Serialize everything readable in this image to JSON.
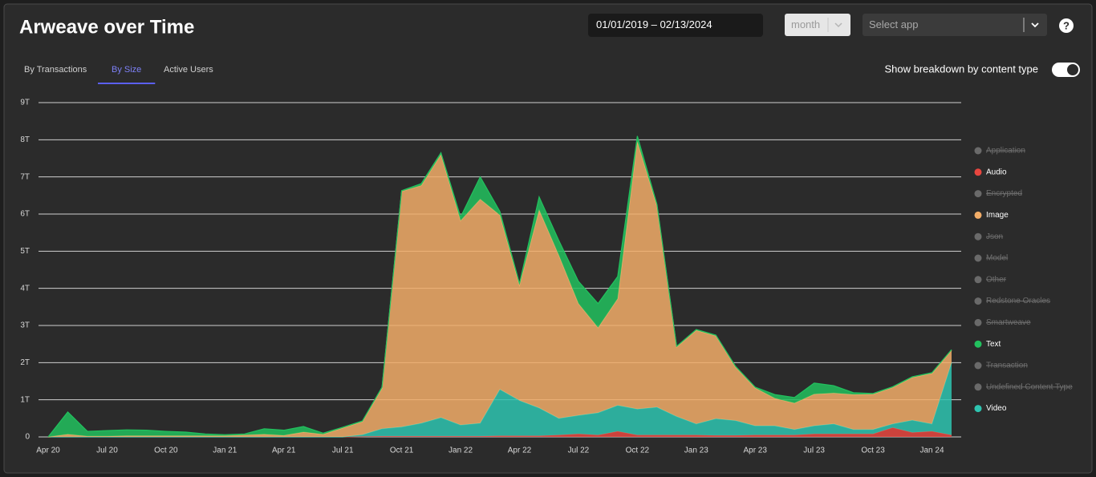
{
  "header": {
    "title": "Arweave over Time"
  },
  "controls": {
    "date_range": "01/01/2019 – 02/13/2024",
    "interval": "month",
    "app_placeholder": "Select app",
    "help": "?"
  },
  "tabs": {
    "items": [
      "By Transactions",
      "By Size",
      "Active Users"
    ],
    "active": 1
  },
  "toggle": {
    "label": "Show breakdown by content type",
    "on": true
  },
  "chart_data": {
    "type": "stacked_area",
    "categories": [
      "Apr 20",
      null,
      null,
      "Jul 20",
      null,
      null,
      "Oct 20",
      null,
      null,
      "Jan 21",
      null,
      null,
      "Apr 21",
      null,
      null,
      "Jul 21",
      null,
      null,
      "Oct 21",
      null,
      null,
      "Jan 22",
      null,
      null,
      "Apr 22",
      null,
      null,
      "Jul 22",
      null,
      null,
      "Oct 22",
      null,
      null,
      "Jan 23",
      null,
      null,
      "Apr 23",
      null,
      null,
      "Jul 23",
      null,
      null,
      "Oct 23",
      null,
      null,
      "Jan 24",
      null
    ],
    "series": [
      {
        "name": "Audio",
        "color": "#e8463f",
        "values": [
          0,
          0,
          0,
          0,
          0,
          0,
          0,
          0,
          0,
          0,
          0,
          0,
          0,
          0,
          0,
          0,
          0.01,
          0.02,
          0.02,
          0.02,
          0.02,
          0.02,
          0.02,
          0.03,
          0.03,
          0.03,
          0.05,
          0.08,
          0.05,
          0.15,
          0.05,
          0.05,
          0.05,
          0.05,
          0.04,
          0.04,
          0.05,
          0.05,
          0.05,
          0.08,
          0.08,
          0.08,
          0.08,
          0.25,
          0.12,
          0.15,
          0.05
        ]
      },
      {
        "name": "Video",
        "color": "#2ec4b0",
        "values": [
          0,
          0,
          0,
          0,
          0,
          0,
          0,
          0,
          0,
          0,
          0,
          0,
          0,
          0,
          0,
          0,
          0.05,
          0.2,
          0.25,
          0.35,
          0.5,
          0.3,
          0.35,
          1.25,
          0.95,
          0.75,
          0.45,
          0.5,
          0.6,
          0.7,
          0.7,
          0.75,
          0.5,
          0.3,
          0.45,
          0.4,
          0.25,
          0.25,
          0.15,
          0.22,
          0.27,
          0.12,
          0.12,
          0.1,
          0.33,
          0.2,
          1.95
        ]
      },
      {
        "name": "Image",
        "color": "#f2ad68",
        "values": [
          0,
          0.07,
          0.02,
          0.02,
          0.03,
          0.03,
          0.03,
          0.03,
          0.03,
          0.03,
          0.05,
          0.07,
          0.04,
          0.13,
          0.07,
          0.24,
          0.35,
          1.09,
          6.34,
          6.4,
          7.08,
          5.5,
          6.03,
          4.69,
          3.1,
          5.33,
          4.39,
          3.01,
          2.29,
          2.87,
          7.2,
          5.41,
          1.87,
          2.52,
          2.23,
          1.44,
          1.02,
          0.74,
          0.71,
          0.85,
          0.83,
          0.94,
          0.95,
          0.98,
          1.15,
          1.36,
          0.33
        ]
      },
      {
        "name": "Text",
        "color": "#22c15e",
        "values": [
          0,
          0.6,
          0.13,
          0.15,
          0.16,
          0.15,
          0.12,
          0.1,
          0.05,
          0.03,
          0.03,
          0.15,
          0.14,
          0.15,
          0.03,
          0.02,
          0.02,
          0.03,
          0.02,
          0.05,
          0.05,
          0.1,
          0.6,
          0.1,
          0.05,
          0.35,
          0.4,
          0.6,
          0.65,
          0.6,
          0.15,
          0.05,
          0.02,
          0.02,
          0.02,
          0.02,
          0.02,
          0.1,
          0.15,
          0.3,
          0.2,
          0.05,
          0.02,
          0.02,
          0.02,
          0.02,
          0.02
        ]
      }
    ],
    "hidden_series": [
      "Application",
      "Encrypted",
      "Json",
      "Model",
      "Other",
      "Redstone Oracles",
      "Smartweave",
      "Transaction",
      "Undefined Content Type"
    ],
    "hidden_color": "#6a6a6a",
    "ylim": [
      0,
      9
    ],
    "yticks": [
      0,
      {
        "value": 1,
        "label": "1T"
      },
      {
        "value": 2,
        "label": "2T"
      },
      {
        "value": 3,
        "label": "3T"
      },
      {
        "value": 4,
        "label": "4T"
      },
      {
        "value": 5,
        "label": "5T"
      },
      {
        "value": 6,
        "label": "6T"
      },
      {
        "value": 7,
        "label": "7T"
      },
      {
        "value": 8,
        "label": "8T"
      },
      {
        "value": 9,
        "label": "9T"
      }
    ],
    "grid": true,
    "legend": "right"
  }
}
